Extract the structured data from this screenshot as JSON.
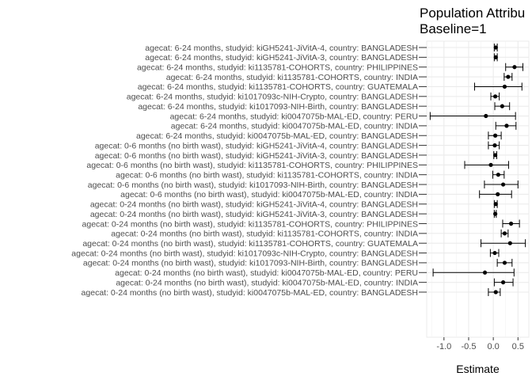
{
  "chart_data": {
    "type": "scatter",
    "title_line1": "Population Attribu",
    "title_line2": "Baseline=1",
    "xlabel": "Estimate",
    "ylabel": "",
    "xlim": [
      -1.35,
      0.72
    ],
    "xticks": [
      -1.0,
      -0.5,
      0.0,
      0.5
    ],
    "xtick_labels": [
      "-1.0",
      "-0.5",
      "0.0",
      "0.5"
    ],
    "grid": true,
    "rows": [
      {
        "label": "agecat: 6-24 months, studyid: kiGH5241-JiVitA-4, country: BANGLADESH",
        "estimate": 0.05,
        "lower": 0.02,
        "upper": 0.08
      },
      {
        "label": "agecat: 6-24 months, studyid: kiGH5241-JiVitA-3, country: BANGLADESH",
        "estimate": 0.05,
        "lower": 0.02,
        "upper": 0.08
      },
      {
        "label": "agecat: 6-24 months, studyid: ki1135781-COHORTS, country: PHILIPPINES",
        "estimate": 0.43,
        "lower": 0.25,
        "upper": 0.6
      },
      {
        "label": "agecat: 6-24 months, studyid: ki1135781-COHORTS, country: INDIA",
        "estimate": 0.3,
        "lower": 0.22,
        "upper": 0.38
      },
      {
        "label": "agecat: 6-24 months, studyid: ki1135781-COHORTS, country: GUATEMALA",
        "estimate": 0.23,
        "lower": -0.38,
        "upper": 0.58
      },
      {
        "label": "agecat: 6-24 months, studyid: ki1017093c-NIH-Crypto, country: BANGLADESH",
        "estimate": 0.04,
        "lower": -0.05,
        "upper": 0.12
      },
      {
        "label": "agecat: 6-24 months, studyid: ki1017093-NIH-Birth, country: BANGLADESH",
        "estimate": 0.18,
        "lower": 0.03,
        "upper": 0.33
      },
      {
        "label": "agecat: 6-24 months, studyid: ki0047075b-MAL-ED, country: PERU",
        "estimate": -0.15,
        "lower": -1.28,
        "upper": 0.45
      },
      {
        "label": "agecat: 6-24 months, studyid: ki0047075b-MAL-ED, country: INDIA",
        "estimate": 0.27,
        "lower": 0.05,
        "upper": 0.46
      },
      {
        "label": "agecat: 6-24 months, studyid: ki0047075b-MAL-ED, country: BANGLADESH",
        "estimate": 0.04,
        "lower": -0.1,
        "upper": 0.16
      },
      {
        "label": "agecat: 0-6 months (no birth wast), studyid: kiGH5241-JiVitA-4, country: BANGLADESH",
        "estimate": 0.03,
        "lower": -0.1,
        "upper": 0.12
      },
      {
        "label": "agecat: 0-6 months (no birth wast), studyid: kiGH5241-JiVitA-3, country: BANGLADESH",
        "estimate": 0.04,
        "lower": 0.01,
        "upper": 0.07
      },
      {
        "label": "agecat: 0-6 months (no birth wast), studyid: ki1135781-COHORTS, country: PHILIPPINES",
        "estimate": -0.05,
        "lower": -0.58,
        "upper": 0.31
      },
      {
        "label": "agecat: 0-6 months (no birth wast), studyid: ki1135781-COHORTS, country: INDIA",
        "estimate": 0.1,
        "lower": -0.01,
        "upper": 0.22
      },
      {
        "label": "agecat: 0-6 months (no birth wast), studyid: ki1017093-NIH-Birth, country: BANGLADESH",
        "estimate": 0.2,
        "lower": -0.18,
        "upper": 0.5
      },
      {
        "label": "agecat: 0-6 months (no birth wast), studyid: ki0047075b-MAL-ED, country: INDIA",
        "estimate": 0.09,
        "lower": -0.28,
        "upper": 0.37
      },
      {
        "label": "agecat: 0-24 months (no birth wast), studyid: kiGH5241-JiVitA-4, country: BANGLADESH",
        "estimate": 0.05,
        "lower": 0.02,
        "upper": 0.08
      },
      {
        "label": "agecat: 0-24 months (no birth wast), studyid: kiGH5241-JiVitA-3, country: BANGLADESH",
        "estimate": 0.04,
        "lower": 0.02,
        "upper": 0.06
      },
      {
        "label": "agecat: 0-24 months (no birth wast), studyid: ki1135781-COHORTS, country: PHILIPPINES",
        "estimate": 0.36,
        "lower": 0.19,
        "upper": 0.53
      },
      {
        "label": "agecat: 0-24 months (no birth wast), studyid: ki1135781-COHORTS, country: INDIA",
        "estimate": 0.23,
        "lower": 0.16,
        "upper": 0.3
      },
      {
        "label": "agecat: 0-24 months (no birth wast), studyid: ki1135781-COHORTS, country: GUATEMALA",
        "estimate": 0.34,
        "lower": -0.25,
        "upper": 0.65
      },
      {
        "label": "agecat: 0-24 months (no birth wast), studyid: ki1017093c-NIH-Crypto, country: BANGLADESH",
        "estimate": 0.03,
        "lower": -0.06,
        "upper": 0.11
      },
      {
        "label": "agecat: 0-24 months (no birth wast), studyid: ki1017093-NIH-Birth, country: BANGLADESH",
        "estimate": 0.23,
        "lower": 0.08,
        "upper": 0.38
      },
      {
        "label": "agecat: 0-24 months (no birth wast), studyid: ki0047075b-MAL-ED, country: PERU",
        "estimate": -0.17,
        "lower": -1.22,
        "upper": 0.42
      },
      {
        "label": "agecat: 0-24 months (no birth wast), studyid: ki0047075b-MAL-ED, country: INDIA",
        "estimate": 0.2,
        "lower": 0.02,
        "upper": 0.4
      },
      {
        "label": "agecat: 0-24 months (no birth wast), studyid: ki0047075b-MAL-ED, country: BANGLADESH",
        "estimate": 0.05,
        "lower": -0.1,
        "upper": 0.14
      }
    ]
  }
}
